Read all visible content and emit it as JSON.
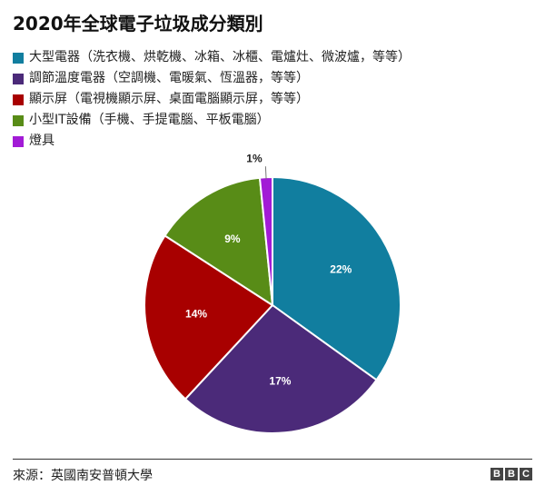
{
  "chart_data": {
    "type": "pie",
    "title": "2020年全球電子垃圾成分類別",
    "legend_position": "top-left",
    "slices": [
      {
        "label": "大型電器（洗衣機、烘乾機、冰箱、冰櫃、電爐灶、微波爐，等等）",
        "value": 22,
        "display": "22%",
        "color": "#117e9f"
      },
      {
        "label": "調節溫度電器（空調機、電暖氣、恆溫器，等等）",
        "value": 17,
        "display": "17%",
        "color": "#4b2a79"
      },
      {
        "label": "顯示屏（電視機顯示屏、桌面電腦顯示屏，等等）",
        "value": 14,
        "display": "14%",
        "color": "#a80000"
      },
      {
        "label": "小型IT設備（手機、手提電腦、平板電腦）",
        "value": 9,
        "display": "9%",
        "color": "#588c17"
      },
      {
        "label": "燈具",
        "value": 1,
        "display": "1%",
        "color": "#a21bd6"
      }
    ]
  },
  "footer": {
    "source": "來源：英國南安普頓大學",
    "logo_letters": [
      "B",
      "B",
      "C"
    ]
  }
}
